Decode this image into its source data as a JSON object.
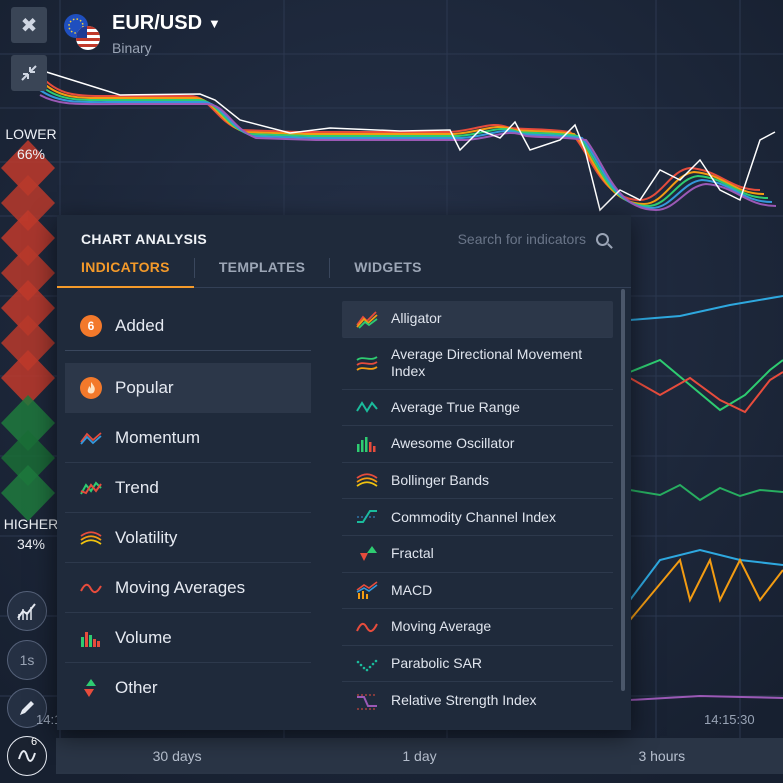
{
  "asset": {
    "name": "EUR/USD",
    "type": "Binary"
  },
  "sentiment": {
    "lower_label": "LOWER",
    "lower_pct": "66%",
    "higher_label": "HIGHER",
    "higher_pct": "34%"
  },
  "side_tools": {
    "timer_label": "1s",
    "indicators_count": "6"
  },
  "time_axis": {
    "tick_left": "14:1",
    "tick_right": "14:15:30"
  },
  "time_ranges": [
    "30 days",
    "1 day",
    "3 hours"
  ],
  "panel": {
    "title": "CHART ANALYSIS",
    "search_placeholder": "Search for indicators",
    "tabs": [
      "INDICATORS",
      "TEMPLATES",
      "WIDGETS"
    ],
    "added": {
      "count": "6",
      "label": "Added"
    },
    "categories": [
      {
        "label": "Popular",
        "icon": "fire-icon"
      },
      {
        "label": "Momentum",
        "icon": "momentum-icon"
      },
      {
        "label": "Trend",
        "icon": "trend-icon"
      },
      {
        "label": "Volatility",
        "icon": "volatility-icon"
      },
      {
        "label": "Moving Averages",
        "icon": "moving-average-icon"
      },
      {
        "label": "Volume",
        "icon": "volume-icon"
      },
      {
        "label": "Other",
        "icon": "other-icon"
      }
    ],
    "indicators": [
      {
        "label": "Alligator",
        "icon": "alligator-icon"
      },
      {
        "label": "Average Directional Movement Index",
        "icon": "adx-icon"
      },
      {
        "label": "Average True Range",
        "icon": "atr-icon"
      },
      {
        "label": "Awesome Oscillator",
        "icon": "awesome-oscillator-icon"
      },
      {
        "label": "Bollinger Bands",
        "icon": "bollinger-icon"
      },
      {
        "label": "Commodity Channel Index",
        "icon": "cci-icon"
      },
      {
        "label": "Fractal",
        "icon": "fractal-icon"
      },
      {
        "label": "MACD",
        "icon": "macd-icon"
      },
      {
        "label": "Moving Average",
        "icon": "moving-average-icon"
      },
      {
        "label": "Parabolic SAR",
        "icon": "parabolic-sar-icon"
      },
      {
        "label": "Relative Strength Index",
        "icon": "rsi-icon"
      }
    ]
  },
  "colors": {
    "accent": "#f49a2a",
    "lower": "#c0392b",
    "higher": "#1f7a3d",
    "panel_bg": "#1f2a3b"
  }
}
